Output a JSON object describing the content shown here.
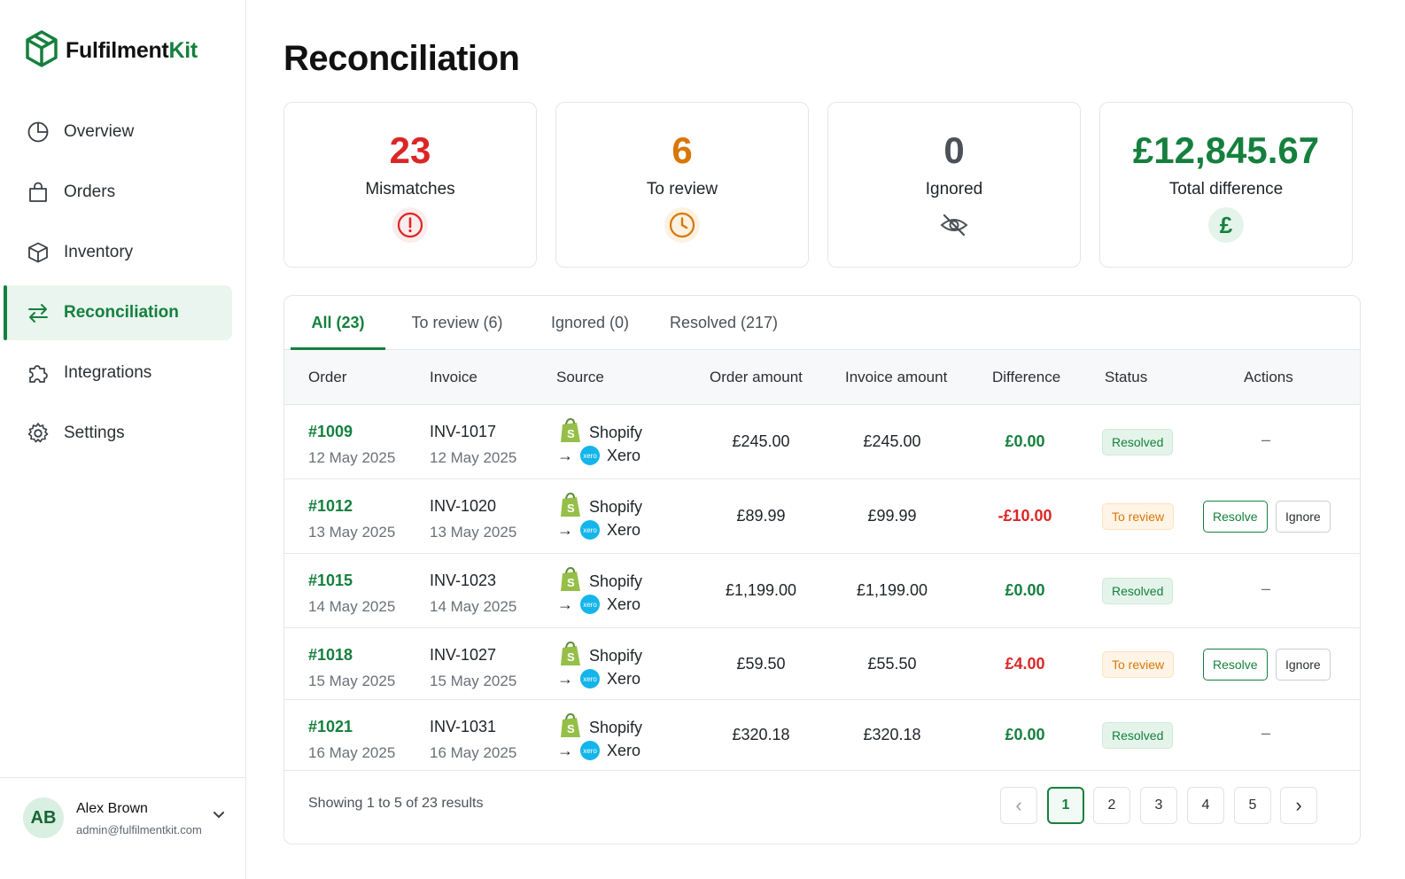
{
  "brand": {
    "name_part1": "Fulfilment",
    "name_part2": "Kit"
  },
  "nav": [
    {
      "label": "Overview",
      "icon": "pie-chart-icon",
      "active": false
    },
    {
      "label": "Orders",
      "icon": "shopping-bag-icon",
      "active": false
    },
    {
      "label": "Inventory",
      "icon": "box-icon",
      "active": false
    },
    {
      "label": "Reconciliation",
      "icon": "arrows-swap-icon",
      "active": true
    },
    {
      "label": "Integrations",
      "icon": "puzzle-icon",
      "active": false
    },
    {
      "label": "Settings",
      "icon": "gear-icon",
      "active": false
    }
  ],
  "user": {
    "initials": "AB",
    "name": "Alex Brown",
    "email": "admin@fulfilmentkit.com"
  },
  "page": {
    "title": "Reconciliation"
  },
  "stats": [
    {
      "value": "23",
      "label": "Mismatches",
      "color": "#dc2626",
      "icon": "alert-circle-icon"
    },
    {
      "value": "6",
      "label": "To review",
      "color": "#d97706",
      "icon": "clock-icon"
    },
    {
      "value": "0",
      "label": "Ignored",
      "color": "#4b5157",
      "icon": "eye-off-icon"
    },
    {
      "value": "£12,845.67",
      "label": "Total difference",
      "color": "#15803d",
      "icon": "pound-icon"
    }
  ],
  "tabs": [
    {
      "label": "All (23)",
      "active": true
    },
    {
      "label": "To review (6)",
      "active": false
    },
    {
      "label": "Ignored (0)",
      "active": false
    },
    {
      "label": "Resolved (217)",
      "active": false
    }
  ],
  "columns": {
    "order": "Order",
    "invoice": "Invoice",
    "source": "Source",
    "order_amount": "Order amount",
    "invoice_amount": "Invoice amount",
    "difference": "Difference",
    "status": "Status",
    "actions": "Actions"
  },
  "source": {
    "from": "Shopify",
    "arrow": "→",
    "to": "Xero",
    "xero_logo_text": "xero"
  },
  "rows": [
    {
      "order": "#1009",
      "order_date": "12 May 2025",
      "invoice": "INV-1017",
      "invoice_date": "12 May 2025",
      "order_amount": "£245.00",
      "invoice_amount": "£245.00",
      "difference": "£0.00",
      "diff_type": "zero",
      "status": "Resolved",
      "status_type": "resolved",
      "dash": "–"
    },
    {
      "order": "#1012",
      "order_date": "13 May 2025",
      "invoice": "INV-1020",
      "invoice_date": "13 May 2025",
      "order_amount": "£89.99",
      "invoice_amount": "£99.99",
      "difference": "-£10.00",
      "diff_type": "neg",
      "status": "To review",
      "status_type": "review",
      "resolve": "Resolve",
      "ignore": "Ignore"
    },
    {
      "order": "#1015",
      "order_date": "14 May 2025",
      "invoice": "INV-1023",
      "invoice_date": "14 May 2025",
      "order_amount": "£1,199.00",
      "invoice_amount": "£1,199.00",
      "difference": "£0.00",
      "diff_type": "zero",
      "status": "Resolved",
      "status_type": "resolved",
      "dash": "–"
    },
    {
      "order": "#1018",
      "order_date": "15 May 2025",
      "invoice": "INV-1027",
      "invoice_date": "15 May 2025",
      "order_amount": "£59.50",
      "invoice_amount": "£55.50",
      "difference": "£4.00",
      "diff_type": "neg",
      "status": "To review",
      "status_type": "review",
      "resolve": "Resolve",
      "ignore": "Ignore"
    },
    {
      "order": "#1021",
      "order_date": "16 May 2025",
      "invoice": "INV-1031",
      "invoice_date": "16 May 2025",
      "order_amount": "£320.18",
      "invoice_amount": "£320.18",
      "difference": "£0.00",
      "diff_type": "zero",
      "status": "Resolved",
      "status_type": "resolved",
      "dash": "–"
    }
  ],
  "pagination": {
    "showing": "Showing 1 to 5 of 23 results",
    "prev": "‹",
    "next": "›",
    "pages": [
      "1",
      "2",
      "3",
      "4",
      "5"
    ],
    "current": "1"
  }
}
